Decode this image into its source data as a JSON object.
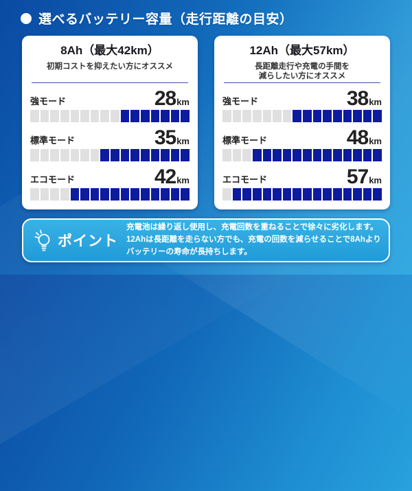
{
  "header": {
    "title": "選べるバッテリー容量（走行距離の目安）"
  },
  "colors": {
    "segment_filled": "#0d1b9e",
    "segment_empty": "#e0e0e0",
    "divider": "#3b4fae",
    "background_blue": "#1470c0",
    "point_box_blue": "#2aa5e0"
  },
  "cards": [
    {
      "title": "8Ah（最大42km）",
      "subtitle": "初期コストを抑えたい方にオススメ",
      "rows": [
        {
          "label": "強モード",
          "value": "28",
          "unit": "km",
          "segments_total": 16,
          "segments_filled": 7
        },
        {
          "label": "標準モード",
          "value": "35",
          "unit": "km",
          "segments_total": 16,
          "segments_filled": 9
        },
        {
          "label": "エコモード",
          "value": "42",
          "unit": "km",
          "segments_total": 16,
          "segments_filled": 12
        }
      ]
    },
    {
      "title": "12Ah（最大57km）",
      "subtitle": "長距離走行や充電の手間を\n減らしたい方にオススメ",
      "rows": [
        {
          "label": "強モード",
          "value": "38",
          "unit": "km",
          "segments_total": 16,
          "segments_filled": 9
        },
        {
          "label": "標準モード",
          "value": "48",
          "unit": "km",
          "segments_total": 16,
          "segments_filled": 13
        },
        {
          "label": "エコモード",
          "value": "57",
          "unit": "km",
          "segments_total": 16,
          "segments_filled": 15
        }
      ]
    }
  ],
  "point": {
    "icon": "lightbulb-icon",
    "label": "ポイント",
    "text": "充電池は繰り返し使用し、充電回数を重ねることで徐々に劣化します。\n12Ahは長距離を走らない方でも、充電の回数を減らせることで8Ahより\nバッテリーの寿命が長持ちします。"
  },
  "chart_data": [
    {
      "type": "bar",
      "title": "8Ah（最大42km）",
      "subtitle": "初期コストを抑えたい方にオススメ",
      "categories": [
        "強モード",
        "標準モード",
        "エコモード"
      ],
      "values": [
        28,
        35,
        42
      ],
      "unit": "km",
      "xlabel": "",
      "ylabel": "走行距離",
      "xlim": [
        0,
        61
      ],
      "legend": false,
      "style": "segmented horizontal bar, 16 segments, filled from right"
    },
    {
      "type": "bar",
      "title": "12Ah（最大57km）",
      "subtitle": "長距離走行や充電の手間を減らしたい方にオススメ",
      "categories": [
        "強モード",
        "標準モード",
        "エコモード"
      ],
      "values": [
        38,
        48,
        57
      ],
      "unit": "km",
      "xlabel": "",
      "ylabel": "走行距離",
      "xlim": [
        0,
        61
      ],
      "legend": false,
      "style": "segmented horizontal bar, 16 segments, filled from right"
    }
  ]
}
